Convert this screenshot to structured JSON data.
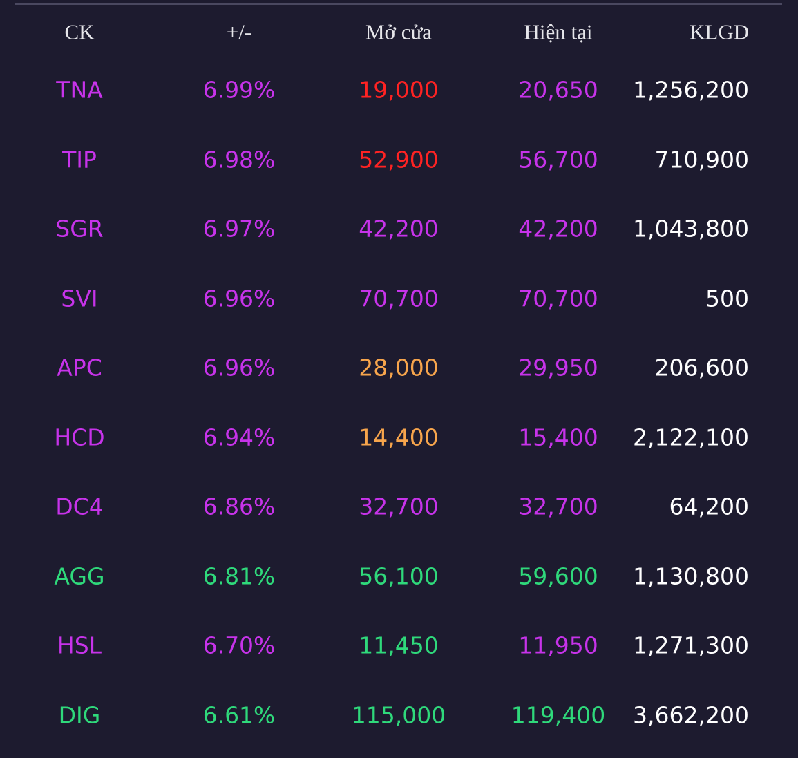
{
  "table": {
    "header": [
      "CK",
      "+/-",
      "Mở cửa",
      "Hiện tại",
      "KLGD"
    ],
    "rows": [
      {
        "cells": [
          "TNA",
          "6.99%",
          "19,000",
          "20,650",
          "1,256,200"
        ],
        "colors": [
          "#c733ea",
          "#c733ea",
          "#ff2323",
          "#c733ea",
          "#ffffff"
        ]
      },
      {
        "cells": [
          "TIP",
          "6.98%",
          "52,900",
          "56,700",
          "710,900"
        ],
        "colors": [
          "#c733ea",
          "#c733ea",
          "#ff2323",
          "#c733ea",
          "#ffffff"
        ]
      },
      {
        "cells": [
          "SGR",
          "6.97%",
          "42,200",
          "42,200",
          "1,043,800"
        ],
        "colors": [
          "#c733ea",
          "#c733ea",
          "#c733ea",
          "#c733ea",
          "#ffffff"
        ]
      },
      {
        "cells": [
          "SVI",
          "6.96%",
          "70,700",
          "70,700",
          "500"
        ],
        "colors": [
          "#c733ea",
          "#c733ea",
          "#c733ea",
          "#c733ea",
          "#ffffff"
        ]
      },
      {
        "cells": [
          "APC",
          "6.96%",
          "28,000",
          "29,950",
          "206,600"
        ],
        "colors": [
          "#c733ea",
          "#c733ea",
          "#f7a54c",
          "#c733ea",
          "#ffffff"
        ]
      },
      {
        "cells": [
          "HCD",
          "6.94%",
          "14,400",
          "15,400",
          "2,122,100"
        ],
        "colors": [
          "#c733ea",
          "#c733ea",
          "#f7a54c",
          "#c733ea",
          "#ffffff"
        ]
      },
      {
        "cells": [
          "DC4",
          "6.86%",
          "32,700",
          "32,700",
          "64,200"
        ],
        "colors": [
          "#c733ea",
          "#c733ea",
          "#c733ea",
          "#c733ea",
          "#ffffff"
        ]
      },
      {
        "cells": [
          "AGG",
          "6.81%",
          "56,100",
          "59,600",
          "1,130,800"
        ],
        "colors": [
          "#2fd97b",
          "#2fd97b",
          "#2fd97b",
          "#2fd97b",
          "#ffffff"
        ]
      },
      {
        "cells": [
          "HSL",
          "6.70%",
          "11,450",
          "11,950",
          "1,271,300"
        ],
        "colors": [
          "#c733ea",
          "#c733ea",
          "#2fd97b",
          "#c733ea",
          "#ffffff"
        ]
      },
      {
        "cells": [
          "DIG",
          "6.61%",
          "115,000",
          "119,400",
          "3,662,200"
        ],
        "colors": [
          "#2fd97b",
          "#2fd97b",
          "#2fd97b",
          "#2fd97b",
          "#ffffff"
        ]
      }
    ]
  }
}
